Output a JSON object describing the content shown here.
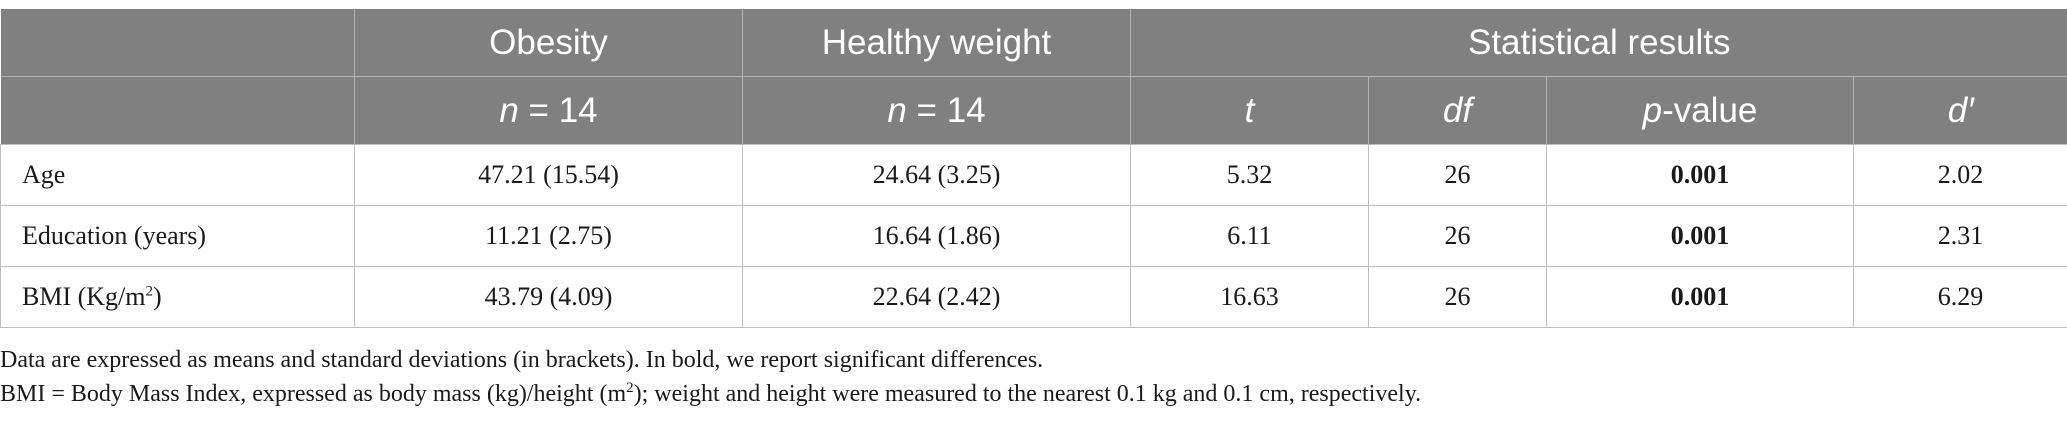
{
  "table": {
    "header_row1": {
      "blank": "",
      "group1": "Obesity",
      "group2": "Healthy weight",
      "stats": "Statistical results"
    },
    "header_row2": {
      "group1_n": {
        "symbol": "n",
        "value": " = 14"
      },
      "group2_n": {
        "symbol": "n",
        "value": " = 14"
      },
      "t": "t",
      "df": "df",
      "p_value": {
        "symbol": "p",
        "suffix": "-value"
      },
      "d": "d′"
    },
    "rows": [
      {
        "label": "Age",
        "label_sup": "",
        "label_end": "",
        "obesity": "47.21 (15.54)",
        "healthy": "24.64 (3.25)",
        "t": "5.32",
        "df": "26",
        "p": "0.001",
        "d": "2.02"
      },
      {
        "label": "Education (years)",
        "label_sup": "",
        "label_end": "",
        "obesity": "11.21 (2.75)",
        "healthy": "16.64 (1.86)",
        "t": "6.11",
        "df": "26",
        "p": "0.001",
        "d": "2.31"
      },
      {
        "label": "BMI (Kg/m",
        "label_sup": "2",
        "label_end": ")",
        "obesity": "43.79 (4.09)",
        "healthy": "22.64 (2.42)",
        "t": "16.63",
        "df": "26",
        "p": "0.001",
        "d": "6.29"
      }
    ]
  },
  "notes": {
    "line1": "Data are expressed as means and standard deviations (in brackets). In bold, we report significant differences.",
    "line2_a": "BMI = Body Mass Index, expressed as body mass (kg)/height (m",
    "line2_sup": "2",
    "line2_b": "); weight and height were measured to the nearest 0.1 kg and 0.1 cm, respectively."
  }
}
